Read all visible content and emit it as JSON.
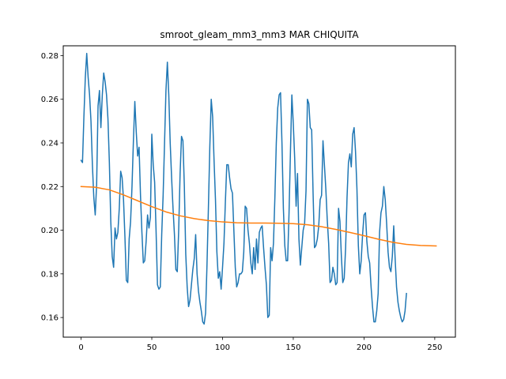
{
  "chart_data": {
    "type": "line",
    "title": "smroot_gleam_mm3_mm3 MAR CHIQUITA",
    "xlabel": "",
    "ylabel": "",
    "xlim": [
      -12.6,
      264.6
    ],
    "ylim": [
      0.151,
      0.2845
    ],
    "grid": false,
    "x_ticks": [
      0,
      50,
      100,
      150,
      200,
      250
    ],
    "y_ticks": [
      0.16,
      0.18,
      0.2,
      0.22,
      0.24,
      0.26,
      0.28
    ],
    "series": [
      {
        "color": "#1f77b4",
        "points": [
          [
            0,
            0.232
          ],
          [
            1,
            0.231
          ],
          [
            2,
            0.252
          ],
          [
            3,
            0.27
          ],
          [
            4,
            0.281
          ],
          [
            5,
            0.27
          ],
          [
            6,
            0.262
          ],
          [
            7,
            0.25
          ],
          [
            8,
            0.23
          ],
          [
            9,
            0.215
          ],
          [
            10,
            0.207
          ],
          [
            11,
            0.221
          ],
          [
            12,
            0.257
          ],
          [
            13,
            0.264
          ],
          [
            14,
            0.247
          ],
          [
            15,
            0.262
          ],
          [
            16,
            0.272
          ],
          [
            17,
            0.268
          ],
          [
            18,
            0.262
          ],
          [
            19,
            0.251
          ],
          [
            20,
            0.231
          ],
          [
            21,
            0.204
          ],
          [
            22,
            0.188
          ],
          [
            23,
            0.183
          ],
          [
            24,
            0.201
          ],
          [
            25,
            0.196
          ],
          [
            26,
            0.199
          ],
          [
            27,
            0.21
          ],
          [
            28,
            0.227
          ],
          [
            29,
            0.224
          ],
          [
            30,
            0.214
          ],
          [
            31,
            0.197
          ],
          [
            32,
            0.177
          ],
          [
            33,
            0.176
          ],
          [
            34,
            0.196
          ],
          [
            35,
            0.204
          ],
          [
            36,
            0.22
          ],
          [
            37,
            0.241
          ],
          [
            38,
            0.259
          ],
          [
            39,
            0.245
          ],
          [
            40,
            0.234
          ],
          [
            41,
            0.238
          ],
          [
            42,
            0.216
          ],
          [
            43,
            0.199
          ],
          [
            44,
            0.185
          ],
          [
            45,
            0.186
          ],
          [
            46,
            0.195
          ],
          [
            47,
            0.207
          ],
          [
            48,
            0.201
          ],
          [
            49,
            0.206
          ],
          [
            50,
            0.244
          ],
          [
            51,
            0.23
          ],
          [
            52,
            0.222
          ],
          [
            53,
            0.2
          ],
          [
            54,
            0.175
          ],
          [
            55,
            0.173
          ],
          [
            56,
            0.174
          ],
          [
            57,
            0.198
          ],
          [
            58,
            0.216
          ],
          [
            59,
            0.24
          ],
          [
            60,
            0.264
          ],
          [
            61,
            0.277
          ],
          [
            62,
            0.262
          ],
          [
            63,
            0.24
          ],
          [
            64,
            0.224
          ],
          [
            65,
            0.21
          ],
          [
            66,
            0.198
          ],
          [
            67,
            0.182
          ],
          [
            68,
            0.181
          ],
          [
            69,
            0.2
          ],
          [
            70,
            0.226
          ],
          [
            71,
            0.243
          ],
          [
            72,
            0.241
          ],
          [
            73,
            0.22
          ],
          [
            74,
            0.189
          ],
          [
            75,
            0.174
          ],
          [
            76,
            0.165
          ],
          [
            77,
            0.168
          ],
          [
            78,
            0.175
          ],
          [
            79,
            0.182
          ],
          [
            80,
            0.187
          ],
          [
            81,
            0.198
          ],
          [
            82,
            0.18
          ],
          [
            83,
            0.172
          ],
          [
            84,
            0.167
          ],
          [
            85,
            0.163
          ],
          [
            86,
            0.158
          ],
          [
            87,
            0.157
          ],
          [
            88,
            0.162
          ],
          [
            89,
            0.184
          ],
          [
            90,
            0.21
          ],
          [
            91,
            0.238
          ],
          [
            92,
            0.26
          ],
          [
            93,
            0.252
          ],
          [
            94,
            0.232
          ],
          [
            95,
            0.214
          ],
          [
            96,
            0.19
          ],
          [
            97,
            0.178
          ],
          [
            98,
            0.181
          ],
          [
            99,
            0.173
          ],
          [
            100,
            0.183
          ],
          [
            101,
            0.194
          ],
          [
            102,
            0.213
          ],
          [
            103,
            0.23
          ],
          [
            104,
            0.23
          ],
          [
            105,
            0.224
          ],
          [
            106,
            0.219
          ],
          [
            107,
            0.217
          ],
          [
            108,
            0.2
          ],
          [
            109,
            0.183
          ],
          [
            110,
            0.174
          ],
          [
            111,
            0.176
          ],
          [
            112,
            0.18
          ],
          [
            113,
            0.18
          ],
          [
            114,
            0.181
          ],
          [
            115,
            0.19
          ],
          [
            116,
            0.211
          ],
          [
            117,
            0.21
          ],
          [
            118,
            0.2
          ],
          [
            119,
            0.194
          ],
          [
            120,
            0.185
          ],
          [
            121,
            0.18
          ],
          [
            122,
            0.192
          ],
          [
            123,
            0.182
          ],
          [
            124,
            0.196
          ],
          [
            125,
            0.185
          ],
          [
            126,
            0.199
          ],
          [
            127,
            0.201
          ],
          [
            128,
            0.202
          ],
          [
            129,
            0.192
          ],
          [
            130,
            0.183
          ],
          [
            131,
            0.175
          ],
          [
            132,
            0.16
          ],
          [
            133,
            0.161
          ],
          [
            134,
            0.192
          ],
          [
            135,
            0.186
          ],
          [
            136,
            0.194
          ],
          [
            137,
            0.215
          ],
          [
            138,
            0.24
          ],
          [
            139,
            0.256
          ],
          [
            140,
            0.262
          ],
          [
            141,
            0.263
          ],
          [
            142,
            0.24
          ],
          [
            143,
            0.21
          ],
          [
            144,
            0.193
          ],
          [
            145,
            0.186
          ],
          [
            146,
            0.186
          ],
          [
            147,
            0.208
          ],
          [
            148,
            0.236
          ],
          [
            149,
            0.262
          ],
          [
            150,
            0.249
          ],
          [
            151,
            0.233
          ],
          [
            152,
            0.211
          ],
          [
            153,
            0.226
          ],
          [
            154,
            0.196
          ],
          [
            155,
            0.184
          ],
          [
            156,
            0.192
          ],
          [
            157,
            0.2
          ],
          [
            158,
            0.203
          ],
          [
            159,
            0.218
          ],
          [
            160,
            0.26
          ],
          [
            161,
            0.258
          ],
          [
            162,
            0.247
          ],
          [
            163,
            0.246
          ],
          [
            164,
            0.217
          ],
          [
            165,
            0.192
          ],
          [
            166,
            0.193
          ],
          [
            167,
            0.196
          ],
          [
            168,
            0.202
          ],
          [
            169,
            0.214
          ],
          [
            170,
            0.216
          ],
          [
            171,
            0.241
          ],
          [
            172,
            0.23
          ],
          [
            173,
            0.219
          ],
          [
            174,
            0.205
          ],
          [
            175,
            0.194
          ],
          [
            176,
            0.176
          ],
          [
            177,
            0.177
          ],
          [
            178,
            0.183
          ],
          [
            179,
            0.18
          ],
          [
            180,
            0.175
          ],
          [
            181,
            0.176
          ],
          [
            182,
            0.21
          ],
          [
            183,
            0.204
          ],
          [
            184,
            0.188
          ],
          [
            185,
            0.176
          ],
          [
            186,
            0.178
          ],
          [
            187,
            0.192
          ],
          [
            188,
            0.215
          ],
          [
            189,
            0.231
          ],
          [
            190,
            0.235
          ],
          [
            191,
            0.229
          ],
          [
            192,
            0.244
          ],
          [
            193,
            0.247
          ],
          [
            194,
            0.236
          ],
          [
            195,
            0.219
          ],
          [
            196,
            0.193
          ],
          [
            197,
            0.18
          ],
          [
            198,
            0.186
          ],
          [
            199,
            0.198
          ],
          [
            200,
            0.207
          ],
          [
            201,
            0.208
          ],
          [
            202,
            0.195
          ],
          [
            203,
            0.188
          ],
          [
            204,
            0.185
          ],
          [
            205,
            0.174
          ],
          [
            206,
            0.165
          ],
          [
            207,
            0.158
          ],
          [
            208,
            0.158
          ],
          [
            209,
            0.163
          ],
          [
            210,
            0.171
          ],
          [
            211,
            0.199
          ],
          [
            212,
            0.208
          ],
          [
            213,
            0.211
          ],
          [
            214,
            0.22
          ],
          [
            215,
            0.214
          ],
          [
            216,
            0.203
          ],
          [
            217,
            0.19
          ],
          [
            218,
            0.183
          ],
          [
            219,
            0.181
          ],
          [
            220,
            0.188
          ],
          [
            221,
            0.202
          ],
          [
            222,
            0.187
          ],
          [
            223,
            0.174
          ],
          [
            224,
            0.167
          ],
          [
            225,
            0.163
          ],
          [
            226,
            0.16
          ],
          [
            227,
            0.158
          ],
          [
            228,
            0.159
          ],
          [
            229,
            0.163
          ],
          [
            230,
            0.171
          ]
        ]
      },
      {
        "color": "#ff7f0e",
        "points": [
          [
            0,
            0.22
          ],
          [
            10,
            0.2197
          ],
          [
            20,
            0.2185
          ],
          [
            30,
            0.2162
          ],
          [
            40,
            0.2135
          ],
          [
            50,
            0.2108
          ],
          [
            60,
            0.2084
          ],
          [
            70,
            0.2066
          ],
          [
            80,
            0.2053
          ],
          [
            90,
            0.2044
          ],
          [
            100,
            0.2038
          ],
          [
            110,
            0.2034
          ],
          [
            120,
            0.2033
          ],
          [
            130,
            0.2033
          ],
          [
            140,
            0.2032
          ],
          [
            150,
            0.203
          ],
          [
            160,
            0.2025
          ],
          [
            170,
            0.2016
          ],
          [
            180,
            0.2004
          ],
          [
            190,
            0.199
          ],
          [
            200,
            0.1975
          ],
          [
            210,
            0.1959
          ],
          [
            220,
            0.1945
          ],
          [
            230,
            0.1935
          ],
          [
            240,
            0.193
          ],
          [
            251,
            0.1928
          ]
        ]
      }
    ]
  }
}
